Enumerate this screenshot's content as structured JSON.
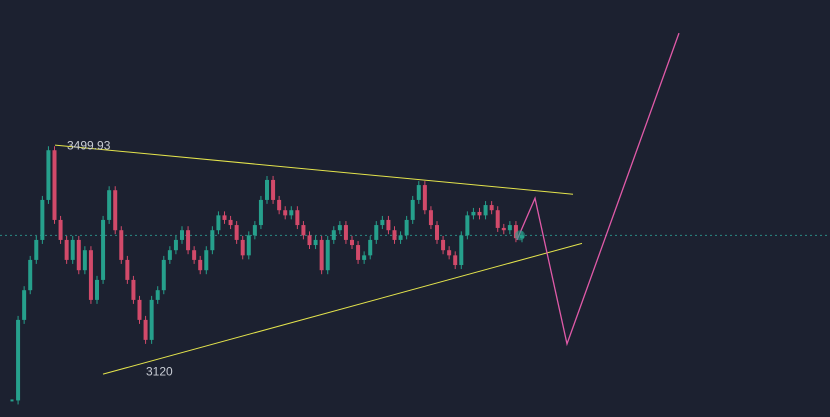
{
  "chart_data": {
    "type": "candlestick",
    "close": [
      3053,
      3194,
      3246,
      3299,
      3334,
      3404,
      3491,
      3369,
      3334,
      3299,
      3334,
      3281,
      3316,
      3229,
      3264,
      3369,
      3421,
      3351,
      3299,
      3264,
      3229,
      3194,
      3159,
      3229,
      3246,
      3299,
      3316,
      3334,
      3351,
      3316,
      3299,
      3281,
      3316,
      3351,
      3377,
      3369,
      3360,
      3334,
      3307,
      3342,
      3360,
      3404,
      3439,
      3404,
      3386,
      3377,
      3386,
      3360,
      3342,
      3325,
      3334,
      3281,
      3334,
      3351,
      3360,
      3334,
      3325,
      3299,
      3307,
      3334,
      3360,
      3369,
      3351,
      3334,
      3342,
      3369,
      3404,
      3430,
      3386,
      3360,
      3334,
      3316,
      3307,
      3290,
      3342,
      3377,
      3383,
      3377,
      3395,
      3386,
      3355,
      3351,
      3360,
      3337,
      3342
    ],
    "up_color": "#26a08c",
    "down_color": "#d24a6a",
    "ylim": [
      3024,
      3754
    ],
    "high_label": 3499.93,
    "low_label": 3120,
    "last_price": 3342,
    "last_price_color": "#2a8c84",
    "trendlines": [
      {
        "color": "#e4e44c",
        "values": [
          3500,
          3414
        ]
      },
      {
        "color": "#e4e44c",
        "values": [
          3099,
          3328
        ]
      }
    ],
    "projection": {
      "color": "#e05aa8",
      "values": [
        3334,
        3407,
        3152,
        3696
      ]
    }
  }
}
